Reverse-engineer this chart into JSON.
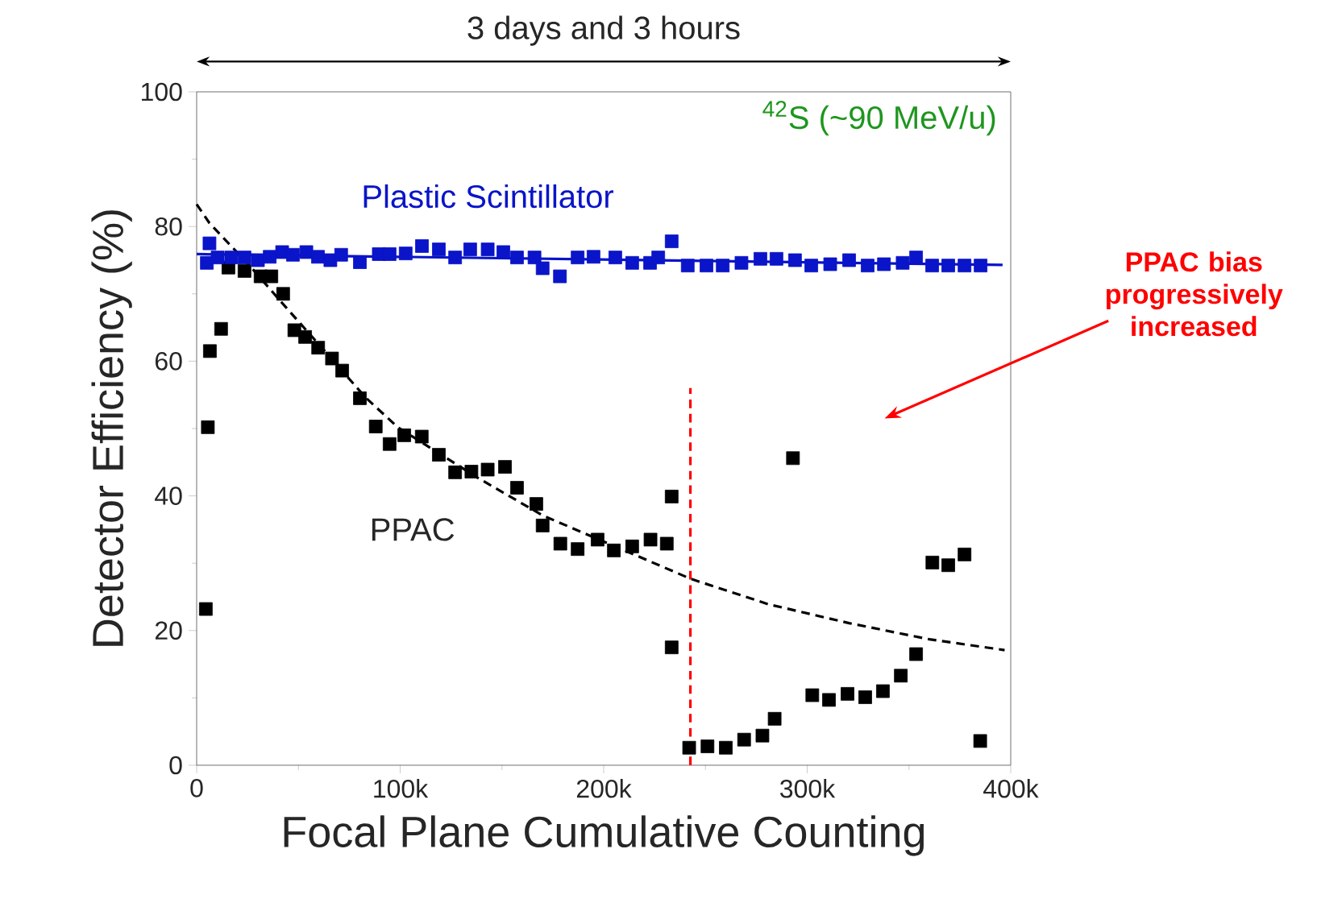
{
  "chart_data": {
    "type": "scatter",
    "xlabel": "Focal Plane Cumulative Counting",
    "ylabel": "Detector Efficiency (%)",
    "xlim": [
      0,
      400000
    ],
    "ylim": [
      0,
      100
    ],
    "xticks": [
      0,
      {
        "value": 100000,
        "label": "100k"
      },
      {
        "value": 200000,
        "label": "200k"
      },
      {
        "value": 300000,
        "label": "300k"
      },
      {
        "value": 400000,
        "label": "400k"
      }
    ],
    "yticks": [
      0,
      20,
      40,
      60,
      80,
      100
    ],
    "grid": false,
    "legend": false,
    "marker": "square",
    "annotations": [
      "3 days and 3 hours",
      "$^{42}$S (~90 MeV/u)",
      "PPAC bias progressively increased"
    ],
    "series": [
      {
        "name": "PPAC",
        "color": "#000000",
        "x": [
          4500,
          5500,
          6500,
          12000,
          15600,
          23500,
          31400,
          36700,
          42500,
          48000,
          53300,
          59700,
          66500,
          71500,
          80200,
          88000,
          94800,
          102000,
          110600,
          119000,
          127000,
          135000,
          143000,
          151500,
          157400,
          166900,
          170000,
          178700,
          187200,
          197000,
          205000,
          214000,
          223000,
          231000,
          233400,
          233400,
          242000,
          251000,
          260000,
          269000,
          278000,
          284000,
          293000,
          302500,
          310700,
          319800,
          328500,
          337200,
          346000,
          353500,
          361500,
          369300,
          377300,
          385000
        ],
        "values": [
          23.2,
          50.2,
          61.5,
          64.8,
          73.9,
          73.4,
          72.6,
          72.6,
          70.0,
          64.6,
          63.6,
          62.0,
          60.4,
          58.6,
          54.5,
          50.3,
          47.7,
          49.0,
          48.8,
          46.1,
          43.5,
          43.6,
          43.9,
          44.3,
          41.2,
          38.8,
          35.6,
          32.9,
          32.1,
          33.5,
          31.9,
          32.5,
          33.5,
          32.9,
          39.9,
          17.5,
          2.6,
          2.8,
          2.6,
          3.8,
          4.4,
          6.9,
          45.6,
          10.4,
          9.7,
          10.6,
          10.1,
          11.0,
          13.3,
          16.5,
          30.1,
          29.7,
          31.3,
          3.6
        ]
      },
      {
        "name": "Plastic Scintillator",
        "color": "#0a14c8",
        "x": [
          5000,
          6300,
          10300,
          17000,
          23500,
          30100,
          35900,
          42000,
          47300,
          53900,
          59600,
          65700,
          71000,
          80200,
          89500,
          94800,
          102700,
          110700,
          119000,
          127000,
          134400,
          143000,
          150700,
          157400,
          166000,
          170000,
          178500,
          187200,
          195000,
          205700,
          214000,
          222800,
          226800,
          233400,
          241300,
          250500,
          258500,
          267700,
          277000,
          284900,
          294000,
          302000,
          311300,
          320600,
          329700,
          337700,
          346900,
          353500,
          361400,
          369300,
          377300,
          385200
        ],
        "values": [
          74.6,
          77.5,
          75.4,
          75.4,
          75.4,
          75.0,
          75.5,
          76.2,
          75.8,
          76.2,
          75.5,
          75.0,
          75.8,
          74.7,
          75.9,
          75.9,
          76.0,
          77.1,
          76.6,
          75.4,
          76.6,
          76.6,
          76.2,
          75.4,
          75.4,
          73.8,
          72.6,
          75.4,
          75.5,
          75.4,
          74.6,
          74.6,
          75.4,
          77.8,
          74.2,
          74.2,
          74.2,
          74.6,
          75.2,
          75.2,
          75.0,
          74.2,
          74.4,
          75.0,
          74.2,
          74.4,
          74.6,
          75.4,
          74.2,
          74.2,
          74.2,
          74.2
        ]
      },
      {
        "type": "line",
        "color": "#000000",
        "line_style": "dashed",
        "marker": "none",
        "x": [
          0,
          6300,
          24800,
          43300,
          64400,
          83000,
          98800,
          138000,
          170000,
          242600,
          281000,
          320600,
          360000,
          397000
        ],
        "values": [
          83.3,
          80.5,
          74.6,
          68.2,
          61.0,
          54.6,
          50.2,
          42.7,
          37.1,
          27.7,
          23.9,
          21.1,
          18.7,
          17.1
        ]
      },
      {
        "type": "line",
        "color": "#0a14c8",
        "line_style": "solid",
        "marker": "none",
        "x": [
          0,
          396000
        ],
        "values": [
          75.9,
          74.3
        ]
      },
      {
        "type": "line",
        "color": "#ff0000",
        "line_style": "dashed",
        "marker": "none",
        "x": [
          242600,
          242600
        ],
        "values": [
          0,
          56
        ]
      }
    ]
  }
}
